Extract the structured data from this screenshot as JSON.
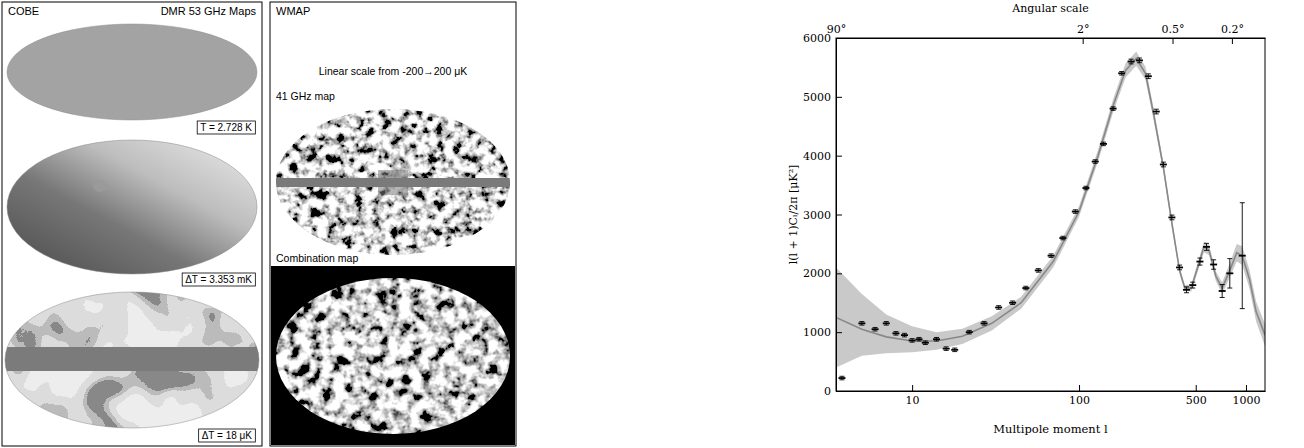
{
  "maps": {
    "cobe": {
      "title": "COBE",
      "subtitle": "DMR 53 GHz Maps",
      "maps": [
        {
          "label": "T = 2.728 K"
        },
        {
          "label": "ΔT = 3.353 mK"
        },
        {
          "label": "ΔT = 18 μK"
        }
      ]
    },
    "wmap": {
      "title": "WMAP",
      "scale_note": "Linear scale from -200→200 μK",
      "maps": [
        {
          "label": "41 GHz map"
        },
        {
          "label": "Combination map"
        }
      ]
    }
  },
  "chart_data": {
    "type": "scatter",
    "x_label": "Multipole moment l",
    "y_label": "l(l + 1)Cₗ/2π [μK²]",
    "x2_label": "Angular scale",
    "log": "x",
    "grid": false,
    "xlim": [
      3.5,
      1300
    ],
    "xticks": [
      10,
      100,
      500,
      1000
    ],
    "x2lim": [
      90,
      0.12
    ],
    "x2ticks": [
      {
        "value": 90,
        "label": "90°"
      },
      {
        "value": 2,
        "label": "2°"
      },
      {
        "value": 0.5,
        "label": "0.5°"
      },
      {
        "value": 0.2,
        "label": "0.2°"
      }
    ],
    "ylim": [
      0,
      6000
    ],
    "yticks": [
      0,
      1000,
      2000,
      3000,
      4000,
      5000,
      6000
    ],
    "series": [
      {
        "type": "line",
        "color": "#888888",
        "x": [
          3.5,
          5,
          7,
          10,
          14,
          20,
          30,
          45,
          70,
          100,
          130,
          160,
          190,
          220,
          250,
          280,
          320,
          360,
          400,
          430,
          470,
          520,
          560,
          600,
          660,
          720,
          800,
          880,
          950,
          1050,
          1150,
          1300
        ],
        "values": [
          1250,
          1050,
          920,
          850,
          850,
          930,
          1150,
          1500,
          2200,
          3050,
          4000,
          4850,
          5450,
          5650,
          5400,
          4700,
          3800,
          2850,
          2050,
          1750,
          1750,
          2150,
          2450,
          2400,
          1950,
          1750,
          2050,
          2350,
          2300,
          1900,
          1350,
          950
        ],
        "lower": [
          400,
          600,
          640,
          660,
          700,
          800,
          1030,
          1400,
          2100,
          2960,
          3900,
          4740,
          5330,
          5530,
          5290,
          4600,
          3720,
          2770,
          1990,
          1700,
          1690,
          2070,
          2360,
          2310,
          1870,
          1650,
          1930,
          2200,
          2140,
          1740,
          1180,
          760
        ],
        "upper": [
          2100,
          1650,
          1300,
          1100,
          1000,
          1060,
          1270,
          1600,
          2300,
          3140,
          4100,
          4960,
          5570,
          5770,
          5510,
          4800,
          3880,
          2930,
          2110,
          1800,
          1810,
          2230,
          2540,
          2490,
          2030,
          1850,
          2170,
          2500,
          2460,
          2060,
          1520,
          1140
        ]
      },
      {
        "type": "scatter",
        "color": "#000000",
        "marker": "dash",
        "x": [
          3.8,
          5,
          6,
          7,
          8,
          9,
          10,
          11,
          12,
          14,
          16,
          18,
          22,
          27,
          33,
          40,
          48,
          57,
          68,
          80,
          95,
          110,
          125,
          140,
          160,
          180,
          205,
          230,
          260,
          290,
          320,
          360,
          400,
          440,
          480,
          530,
          580,
          640,
          720,
          800,
          950
        ],
        "values": [
          220,
          1150,
          1050,
          1150,
          980,
          950,
          860,
          880,
          820,
          880,
          720,
          700,
          1000,
          1150,
          1420,
          1500,
          1750,
          2050,
          2300,
          2600,
          3050,
          3450,
          3900,
          4200,
          4800,
          5400,
          5600,
          5620,
          5350,
          4750,
          3850,
          2950,
          2100,
          1720,
          1800,
          2200,
          2450,
          2150,
          1700,
          2000,
          2300
        ],
        "errors": [
          30,
          30,
          30,
          30,
          30,
          30,
          30,
          30,
          30,
          30,
          30,
          30,
          30,
          30,
          30,
          30,
          30,
          30,
          30,
          30,
          30,
          30,
          30,
          30,
          30,
          30,
          40,
          40,
          40,
          40,
          40,
          40,
          40,
          50,
          50,
          60,
          60,
          80,
          110,
          250,
          900
        ]
      }
    ]
  }
}
